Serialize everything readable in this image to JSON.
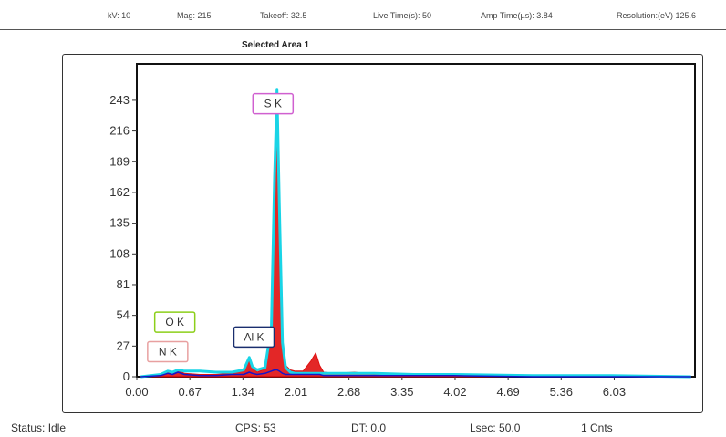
{
  "header": {
    "kv": "kV:   10",
    "mag": "Mag: 215",
    "takeoff": "Takeoff: 32.5",
    "live_time": "Live Time(s): 50",
    "amp_time": "Amp Time(µs): 3.84",
    "resolution": "Resolution:(eV) 125.6"
  },
  "chart_data": {
    "type": "line",
    "title": "Selected Area 1",
    "xlabel": "",
    "ylabel": "",
    "xlim": [
      0,
      7.05
    ],
    "ylim": [
      0,
      275
    ],
    "x_ticks": [
      "0.00",
      "0.67",
      "1.34",
      "2.01",
      "2.68",
      "3.35",
      "4.02",
      "4.69",
      "5.36",
      "6.03"
    ],
    "y_ticks": [
      "0",
      "27",
      "54",
      "81",
      "108",
      "135",
      "162",
      "189",
      "216",
      "243"
    ],
    "grid": false,
    "series": [
      {
        "color": "#e01010",
        "x": [
          0.05,
          0.3,
          0.39,
          0.45,
          0.52,
          0.6,
          0.8,
          1.0,
          1.2,
          1.35,
          1.42,
          1.46,
          1.52,
          1.62,
          1.7,
          1.74,
          1.77,
          1.8,
          1.84,
          1.88,
          1.94,
          2.0,
          2.1,
          2.2,
          2.26,
          2.31,
          2.36,
          2.5,
          2.75,
          3.0,
          3.5,
          4.0,
          5.0,
          6.0,
          7.0
        ],
        "y": [
          0,
          1,
          4,
          2,
          6,
          3,
          2,
          2,
          3,
          6,
          14,
          8,
          4,
          7,
          40,
          150,
          232,
          120,
          30,
          10,
          6,
          5,
          5,
          14,
          21,
          10,
          4,
          3,
          4,
          2,
          2,
          1,
          1,
          1,
          0
        ]
      },
      {
        "color": "#19d4e6",
        "x": [
          0.05,
          0.3,
          0.39,
          0.45,
          0.52,
          0.6,
          0.8,
          1.0,
          1.2,
          1.35,
          1.42,
          1.46,
          1.52,
          1.62,
          1.7,
          1.74,
          1.77,
          1.8,
          1.84,
          1.88,
          1.94,
          2.0,
          2.1,
          2.2,
          2.26,
          2.31,
          2.36,
          2.5,
          2.75,
          3.0,
          3.5,
          4.0,
          5.0,
          6.0,
          7.0
        ],
        "y": [
          0,
          2,
          5,
          4,
          6,
          5,
          5,
          4,
          4,
          6,
          17,
          9,
          6,
          8,
          45,
          175,
          252,
          150,
          30,
          8,
          4,
          3,
          3,
          3,
          3,
          3,
          3,
          3,
          3,
          3,
          2,
          2,
          1,
          1,
          0
        ]
      },
      {
        "color": "#1515c8",
        "x": [
          0.05,
          0.3,
          0.39,
          0.45,
          0.52,
          0.6,
          0.8,
          1.0,
          1.2,
          1.35,
          1.42,
          1.46,
          1.52,
          1.62,
          1.7,
          1.74,
          1.77,
          1.8,
          1.84,
          1.88,
          1.94,
          2.0,
          2.1,
          2.2,
          2.26,
          2.31,
          2.36,
          2.5,
          2.75,
          3.0,
          3.5,
          4.0,
          5.0,
          6.0,
          7.0
        ],
        "y": [
          0,
          1,
          3,
          2,
          4,
          2,
          1,
          1,
          2,
          2,
          4,
          3,
          2,
          3,
          5,
          6,
          6,
          5,
          3,
          2,
          2,
          2,
          2,
          2,
          2,
          2,
          1,
          1,
          1,
          1,
          1,
          1,
          0,
          0,
          0
        ]
      }
    ],
    "annotations": [
      {
        "label": "S  K",
        "x": 1.72,
        "y": 240,
        "color": "#d060d0"
      },
      {
        "label": "O  K",
        "x": 0.48,
        "y": 48,
        "color": "#8ccf1a"
      },
      {
        "label": "N  K",
        "x": 0.39,
        "y": 22,
        "color": "#e8a0a0"
      },
      {
        "label": "Al K",
        "x": 1.48,
        "y": 35,
        "color": "#1a2e6e"
      }
    ]
  },
  "status": {
    "state": "Status: Idle",
    "cps": "CPS: 53",
    "dt": "DT: 0.0",
    "lsec": "Lsec: 50.0",
    "counts": "1 Cnts"
  }
}
